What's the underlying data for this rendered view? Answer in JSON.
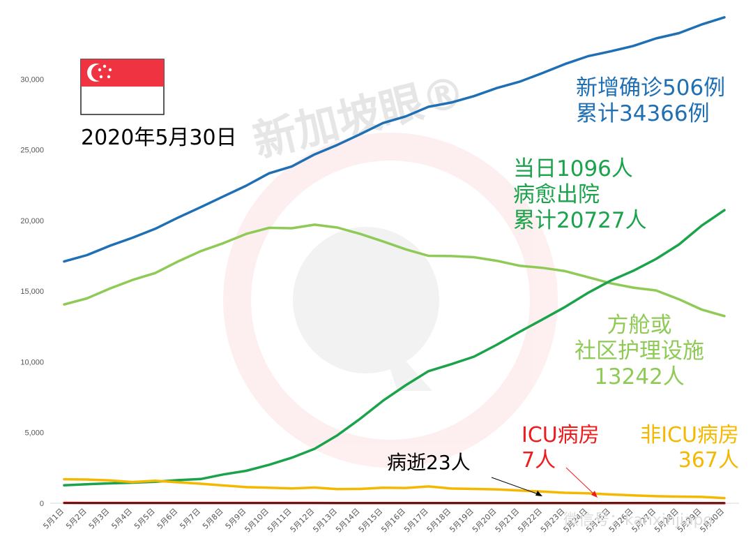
{
  "watermark": {
    "brand": "新加坡眼®",
    "wechat": "微信号：kanxinjiapo"
  },
  "date_label": "2020年5月30日",
  "annotations": {
    "confirmed": {
      "line1": "新增确诊506例",
      "line2": "累计34366例",
      "color": "#1f6fb4"
    },
    "discharged": {
      "line1": "当日1096人",
      "line2": "病愈出院",
      "line3": "累计20727人",
      "color": "#1aa34a"
    },
    "facility": {
      "line1": "方舱或",
      "line2": "社区护理设施",
      "line3": "13242人",
      "color": "#8fca56"
    },
    "icu": {
      "line1": "ICU病房",
      "line2": "7人",
      "color": "#ee1c1c"
    },
    "non_icu": {
      "line1": "非ICU病房",
      "line2": "367人",
      "color": "#f5b800"
    },
    "deaths": {
      "line1": "病逝23人",
      "color": "#000000"
    }
  },
  "chart_data": {
    "type": "line",
    "categories": [
      "5月1日",
      "5月2日",
      "5月3日",
      "5月4日",
      "5月5日",
      "5月6日",
      "5月7日",
      "5月8日",
      "5月9日",
      "5月10日",
      "5月11日",
      "5月12日",
      "5月13日",
      "5月14日",
      "5月15日",
      "5月16日",
      "5月17日",
      "5月18日",
      "5月19日",
      "5月20日",
      "5月21日",
      "5月22日",
      "5月23日",
      "5月24日",
      "5月25日",
      "5月26日",
      "5月27日",
      "5月28日",
      "5月29日",
      "5月30日"
    ],
    "y_ticks": [
      0,
      5000,
      10000,
      15000,
      20000,
      25000,
      30000
    ],
    "y_tick_labels": [
      "0",
      "5,000",
      "10,000",
      "15,000",
      "20,000",
      "25,000",
      "30,000"
    ],
    "ylim": [
      0,
      35000
    ],
    "grid": false,
    "series": [
      {
        "key": "confirmed",
        "color": "#1f6fb4",
        "values": [
          17101,
          17548,
          18205,
          18778,
          19410,
          20198,
          20939,
          21707,
          22460,
          23336,
          23822,
          24671,
          25346,
          26098,
          26891,
          27356,
          28038,
          28343,
          28794,
          29364,
          29812,
          30426,
          31068,
          31616,
          31960,
          32343,
          32876,
          33249,
          33860,
          34366
        ]
      },
      {
        "key": "facility",
        "color": "#8fca56",
        "values": [
          14060,
          14490,
          15180,
          15790,
          16280,
          17100,
          17830,
          18400,
          19050,
          19480,
          19450,
          19700,
          19500,
          19050,
          18520,
          17960,
          17500,
          17480,
          17400,
          17150,
          16800,
          16650,
          16420,
          15990,
          15560,
          15250,
          15050,
          14430,
          13700,
          13242
        ]
      },
      {
        "key": "discharged",
        "color": "#1aa34a",
        "values": [
          1268,
          1347,
          1408,
          1457,
          1519,
          1634,
          1712,
          2040,
          2296,
          2721,
          3225,
          3851,
          4809,
          5973,
          7248,
          8342,
          9340,
          9835,
          10365,
          11207,
          12117,
          12995,
          13882,
          14876,
          15738,
          16444,
          17276,
          18294,
          19631,
          20727
        ]
      },
      {
        "key": "non_icu",
        "color": "#f5b800",
        "values": [
          1700,
          1680,
          1620,
          1500,
          1590,
          1480,
          1380,
          1260,
          1140,
          1100,
          1050,
          1110,
          1000,
          1010,
          1100,
          1080,
          1190,
          1040,
          1010,
          980,
          900,
          830,
          740,
          700,
          620,
          560,
          500,
          470,
          450,
          367
        ]
      },
      {
        "key": "icu",
        "color": "#ee1c1c",
        "values": [
          23,
          22,
          22,
          22,
          21,
          21,
          21,
          20,
          20,
          20,
          19,
          18,
          17,
          17,
          16,
          14,
          14,
          12,
          11,
          11,
          10,
          10,
          9,
          9,
          8,
          8,
          8,
          8,
          7,
          7
        ]
      },
      {
        "key": "deaths",
        "color": "#000000",
        "values": [
          18,
          18,
          18,
          18,
          18,
          18,
          18,
          20,
          20,
          20,
          20,
          20,
          20,
          20,
          20,
          21,
          21,
          21,
          22,
          22,
          22,
          22,
          22,
          22,
          23,
          23,
          23,
          23,
          23,
          23
        ]
      }
    ]
  }
}
